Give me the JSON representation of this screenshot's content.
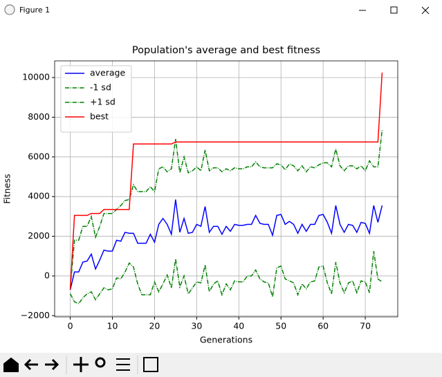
{
  "window": {
    "title": "Figure 1"
  },
  "chart_data": {
    "type": "line",
    "title": "Population's average and best fitness",
    "x_label": "Generations",
    "y_label": "Fitness",
    "x": [
      0,
      1,
      2,
      3,
      4,
      5,
      6,
      7,
      8,
      9,
      10,
      11,
      12,
      13,
      14,
      15,
      16,
      17,
      18,
      19,
      20,
      21,
      22,
      23,
      24,
      25,
      26,
      27,
      28,
      29,
      30,
      31,
      32,
      33,
      34,
      35,
      36,
      37,
      38,
      39,
      40,
      41,
      42,
      43,
      44,
      45,
      46,
      47,
      48,
      49,
      50,
      51,
      52,
      53,
      54,
      55,
      56,
      57,
      58,
      59,
      60,
      61,
      62,
      63,
      64,
      65,
      66,
      67,
      68,
      69,
      70,
      71,
      72,
      73,
      74
    ],
    "series": [
      {
        "name": "average",
        "color": "#0000ff",
        "linestyle": "solid",
        "values": [
          -700,
          200,
          200,
          700,
          750,
          1100,
          350,
          800,
          1300,
          1250,
          1250,
          1800,
          1750,
          2200,
          2150,
          2150,
          1650,
          1650,
          1650,
          2100,
          1700,
          2600,
          2900,
          2600,
          2100,
          3850,
          2200,
          2900,
          2150,
          2200,
          2600,
          2500,
          3500,
          2200,
          2500,
          2500,
          2100,
          2500,
          2250,
          2600,
          2550,
          2550,
          2600,
          2600,
          3050,
          2650,
          2600,
          2600,
          2050,
          3050,
          3100,
          2600,
          2750,
          2600,
          2150,
          2600,
          2250,
          2600,
          2600,
          3050,
          3100,
          2700,
          2150,
          3550,
          2600,
          2200,
          2600,
          2550,
          2200,
          2700,
          2650,
          2150,
          3550,
          2700,
          3550
        ]
      },
      {
        "name": "-1 sd",
        "color": "#008000",
        "linestyle": "dashdot",
        "values": [
          -900,
          -1300,
          -1400,
          -1100,
          -900,
          -800,
          -1200,
          -900,
          -600,
          -700,
          -650,
          -100,
          -150,
          200,
          650,
          450,
          -400,
          -950,
          -950,
          -950,
          -300,
          -800,
          -400,
          50,
          -600,
          850,
          -550,
          0,
          -900,
          -600,
          -300,
          -350,
          550,
          -800,
          -400,
          -250,
          -950,
          -400,
          -700,
          -250,
          -300,
          -300,
          0,
          0,
          300,
          -150,
          -300,
          -350,
          -1050,
          400,
          500,
          -150,
          -250,
          -350,
          -950,
          -400,
          -650,
          -300,
          -250,
          450,
          500,
          -350,
          -900,
          700,
          -350,
          -850,
          -350,
          -250,
          -850,
          -250,
          -300,
          -850,
          1250,
          -150,
          -300
        ]
      },
      {
        "name": "+1 sd",
        "color": "#008000",
        "linestyle": "dashdot",
        "values": [
          -600,
          1800,
          1800,
          2500,
          2500,
          3000,
          1950,
          2500,
          3150,
          3150,
          3150,
          3350,
          3550,
          3800,
          3850,
          4600,
          4250,
          4250,
          4250,
          4500,
          4250,
          5400,
          5500,
          5250,
          5400,
          6900,
          5200,
          6000,
          5200,
          5300,
          5500,
          5300,
          6350,
          5300,
          5450,
          5450,
          5250,
          5400,
          5300,
          5450,
          5400,
          5400,
          5500,
          5500,
          5750,
          5500,
          5450,
          5450,
          5450,
          5650,
          5600,
          5350,
          5650,
          5550,
          5300,
          5550,
          5250,
          5500,
          5450,
          5600,
          5700,
          5700,
          5500,
          6400,
          5550,
          5300,
          5550,
          5550,
          5400,
          5550,
          5300,
          5800,
          5500,
          5500,
          7350
        ]
      },
      {
        "name": "best",
        "color": "#ff0000",
        "linestyle": "solid",
        "values": [
          -700,
          3050,
          3050,
          3050,
          3050,
          3150,
          3150,
          3150,
          3350,
          3350,
          3350,
          3350,
          3350,
          3350,
          3350,
          6650,
          6650,
          6650,
          6650,
          6650,
          6650,
          6650,
          6650,
          6650,
          6650,
          6750,
          6750,
          6750,
          6750,
          6750,
          6750,
          6750,
          6750,
          6750,
          6750,
          6750,
          6750,
          6750,
          6750,
          6750,
          6750,
          6750,
          6750,
          6750,
          6750,
          6750,
          6750,
          6750,
          6750,
          6750,
          6750,
          6750,
          6750,
          6750,
          6750,
          6750,
          6750,
          6750,
          6750,
          6750,
          6750,
          6750,
          6750,
          6750,
          6750,
          6750,
          6750,
          6750,
          6750,
          6750,
          6750,
          6750,
          6750,
          6750,
          10250
        ]
      }
    ],
    "xlim": [
      -3.7,
      77.7
    ],
    "ylim": [
      -2060,
      10840
    ],
    "xticks": [
      0,
      10,
      20,
      30,
      40,
      50,
      60,
      70
    ],
    "yticks": [
      {
        "value": -2000,
        "label": "−2000"
      },
      0,
      2000,
      4000,
      6000,
      8000,
      10000
    ],
    "grid": true,
    "legend": "upper left"
  }
}
